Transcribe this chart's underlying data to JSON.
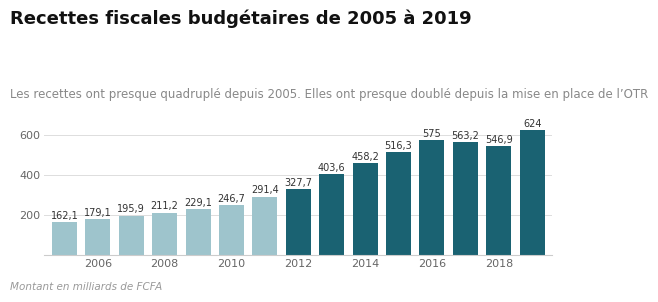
{
  "title": "Recettes fiscales budgétaires de 2005 à 2019",
  "subtitle": "Les recettes ont presque quadruplé depuis 2005. Elles ont presque doublé depuis la mise en place de l’OTR",
  "footnote": "Montant en milliards de FCFA",
  "years": [
    2005,
    2006,
    2007,
    2008,
    2009,
    2010,
    2011,
    2012,
    2013,
    2014,
    2015,
    2016,
    2017,
    2018,
    2019
  ],
  "values": [
    162.1,
    179.1,
    195.9,
    211.2,
    229.1,
    246.7,
    291.4,
    327.7,
    403.6,
    458.2,
    516.3,
    575,
    563.2,
    546.9,
    624
  ],
  "color_light": "#9ec4cc",
  "color_dark": "#1a6272",
  "light_cutoff": 2011,
  "yticks": [
    200,
    400,
    600
  ],
  "ylim": [
    0,
    680
  ],
  "xtick_years": [
    2006,
    2008,
    2010,
    2012,
    2014,
    2016,
    2018
  ],
  "background_color": "#ffffff",
  "title_fontsize": 13,
  "subtitle_fontsize": 8.5,
  "label_fontsize": 7,
  "footnote_fontsize": 7.5,
  "ytick_fontsize": 8,
  "xtick_fontsize": 8
}
